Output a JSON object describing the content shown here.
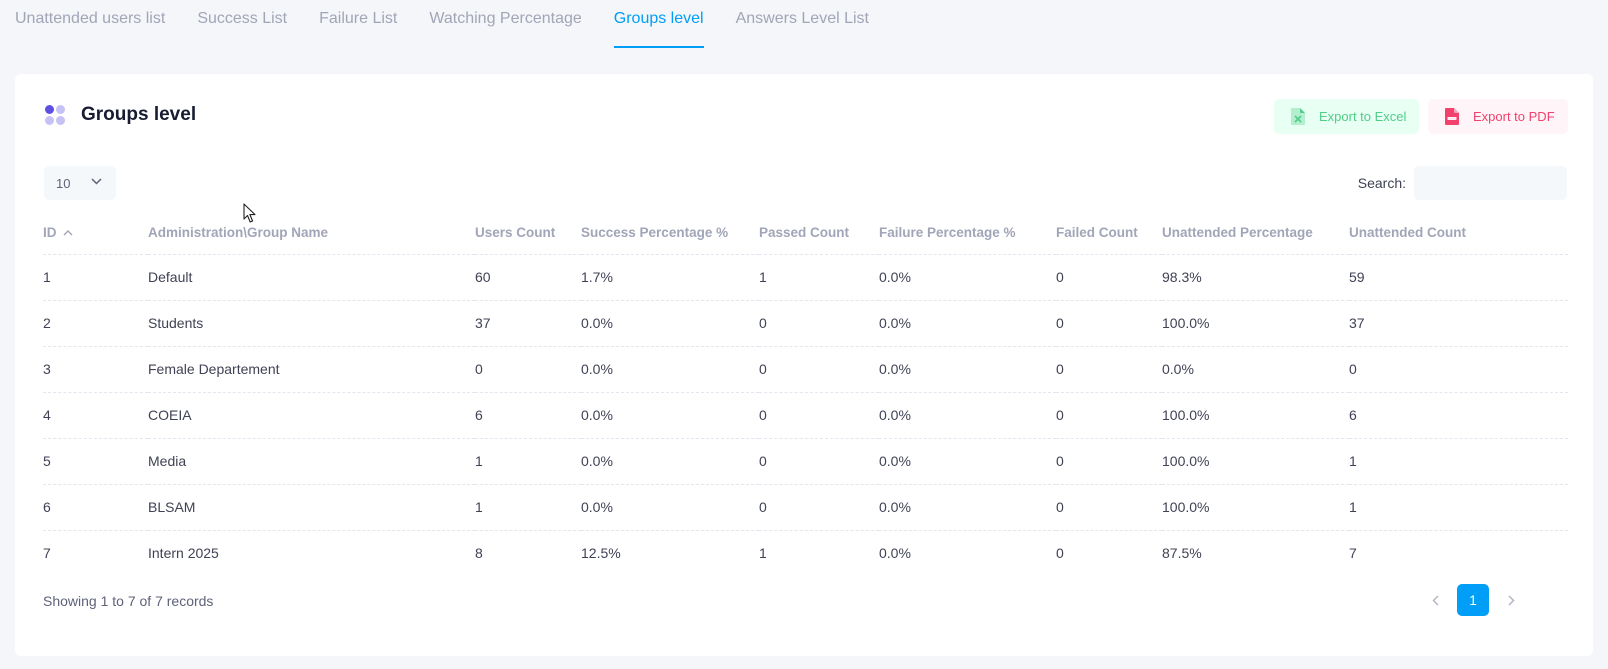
{
  "tabs": [
    {
      "label": "Unattended users list"
    },
    {
      "label": "Success List"
    },
    {
      "label": "Failure List"
    },
    {
      "label": "Watching Percentage"
    },
    {
      "label": "Groups level",
      "active": true
    },
    {
      "label": "Answers Level List"
    }
  ],
  "card": {
    "title": "Groups level",
    "export_excel_label": "Export to Excel",
    "export_pdf_label": "Export to PDF",
    "page_length": "10",
    "search_label": "Search:",
    "search_value": ""
  },
  "table": {
    "columns": [
      "ID",
      "Administration\\Group Name",
      "Users Count",
      "Success Percentage %",
      "Passed Count",
      "Failure Percentage %",
      "Failed Count",
      "Unattended Percentage",
      "Unattended Count"
    ],
    "rows": [
      [
        "1",
        "Default",
        "60",
        "1.7%",
        "1",
        "0.0%",
        "0",
        "98.3%",
        "59"
      ],
      [
        "2",
        "Students",
        "37",
        "0.0%",
        "0",
        "0.0%",
        "0",
        "100.0%",
        "37"
      ],
      [
        "3",
        "Female Departement",
        "0",
        "0.0%",
        "0",
        "0.0%",
        "0",
        "0.0%",
        "0"
      ],
      [
        "4",
        "COEIA",
        "6",
        "0.0%",
        "0",
        "0.0%",
        "0",
        "100.0%",
        "6"
      ],
      [
        "5",
        "Media",
        "1",
        "0.0%",
        "0",
        "0.0%",
        "0",
        "100.0%",
        "1"
      ],
      [
        "6",
        "BLSAM",
        "1",
        "0.0%",
        "0",
        "0.0%",
        "0",
        "100.0%",
        "1"
      ],
      [
        "7",
        "Intern 2025",
        "8",
        "12.5%",
        "1",
        "0.0%",
        "0",
        "87.5%",
        "7"
      ]
    ]
  },
  "footer": {
    "info": "Showing 1 to 7 of 7 records",
    "current_page": "1"
  },
  "colors": {
    "accent": "#009ef7",
    "excel": "#50cd89",
    "pdf": "#f1416c"
  }
}
